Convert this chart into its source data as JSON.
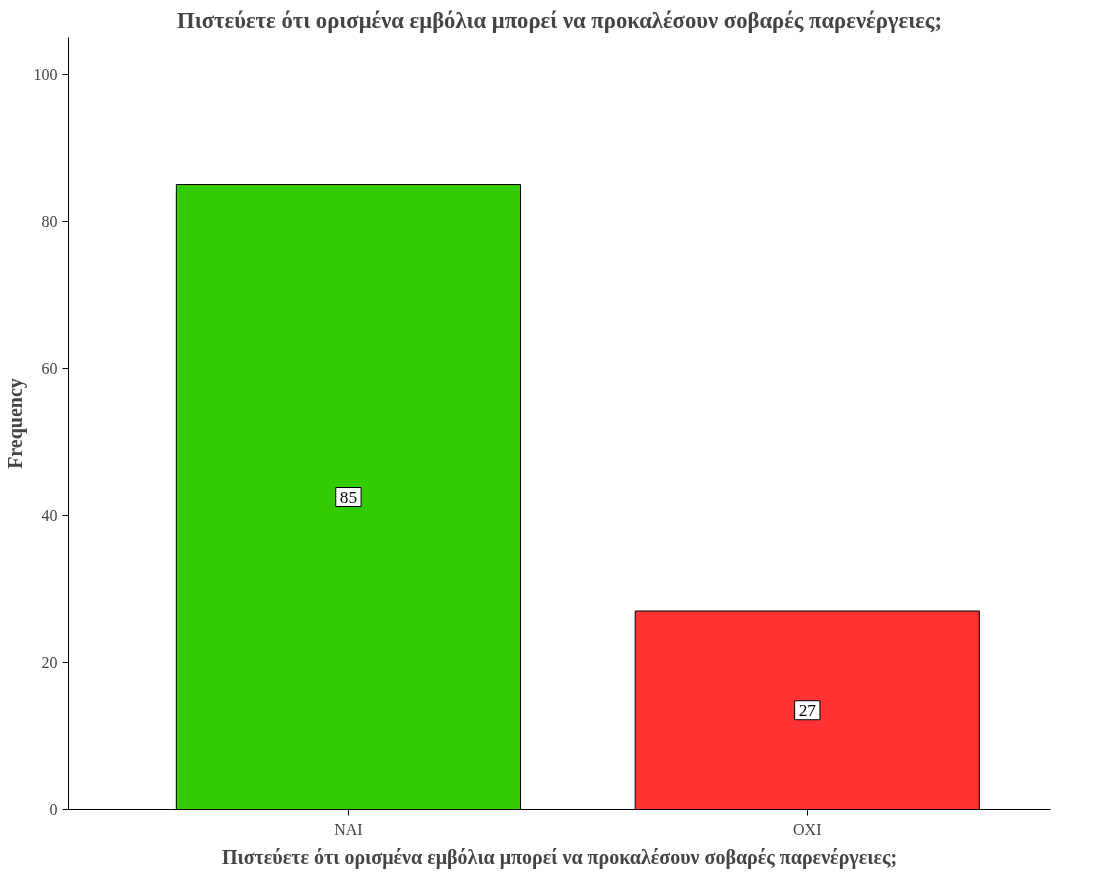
{
  "chart_data": {
    "type": "bar",
    "title": "Πιστεύετε ότι ορισμένα εμβόλια μπορεί να προκαλέσουν σοβαρές παρενέργειες;",
    "xlabel": "Πιστεύετε ότι ορισμένα εμβόλια μπορεί να προκαλέσουν σοβαρές παρενέργειες;",
    "ylabel": "Frequency",
    "categories": [
      "ΝΑΙ",
      "ΟΧΙ"
    ],
    "values": [
      85,
      27
    ],
    "colors": [
      "#33cc00",
      "#ff3333"
    ],
    "ylim": [
      0,
      105
    ],
    "yticks": [
      0,
      20,
      40,
      60,
      80,
      100
    ],
    "grid": false,
    "data_labels": true
  }
}
